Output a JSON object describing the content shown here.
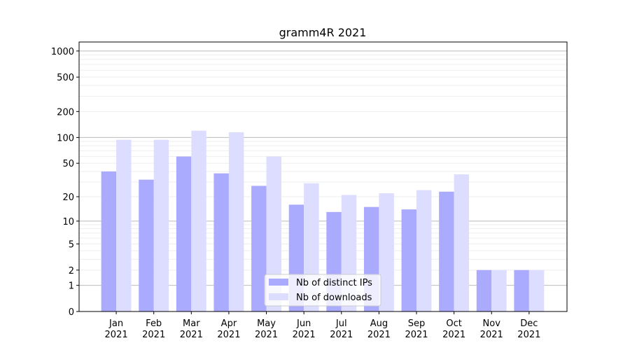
{
  "chart_data": {
    "type": "bar",
    "title": "gramm4R 2021",
    "xlabel": "",
    "ylabel": "",
    "yscale": "log10(1+y)",
    "ylim": [
      0,
      1270
    ],
    "yticks": [
      0,
      1,
      2,
      5,
      10,
      20,
      50,
      100,
      200,
      500,
      1000
    ],
    "grid": true,
    "legend_position": "lower-center",
    "categories": [
      "Jan\n2021",
      "Feb\n2021",
      "Mar\n2021",
      "Apr\n2021",
      "May\n2021",
      "Jun\n2021",
      "Jul\n2021",
      "Aug\n2021",
      "Sep\n2021",
      "Oct\n2021",
      "Nov\n2021",
      "Dec\n2021"
    ],
    "series": [
      {
        "name": "Nb of distinct IPs",
        "color": "#aaaaff",
        "values": [
          40,
          32,
          60,
          38,
          27,
          16,
          13,
          15,
          14,
          23,
          2,
          2
        ]
      },
      {
        "name": "Nb of downloads",
        "color": "#ddddff",
        "values": [
          94,
          94,
          120,
          115,
          60,
          29,
          21,
          22,
          24,
          37,
          2,
          2
        ]
      }
    ]
  }
}
